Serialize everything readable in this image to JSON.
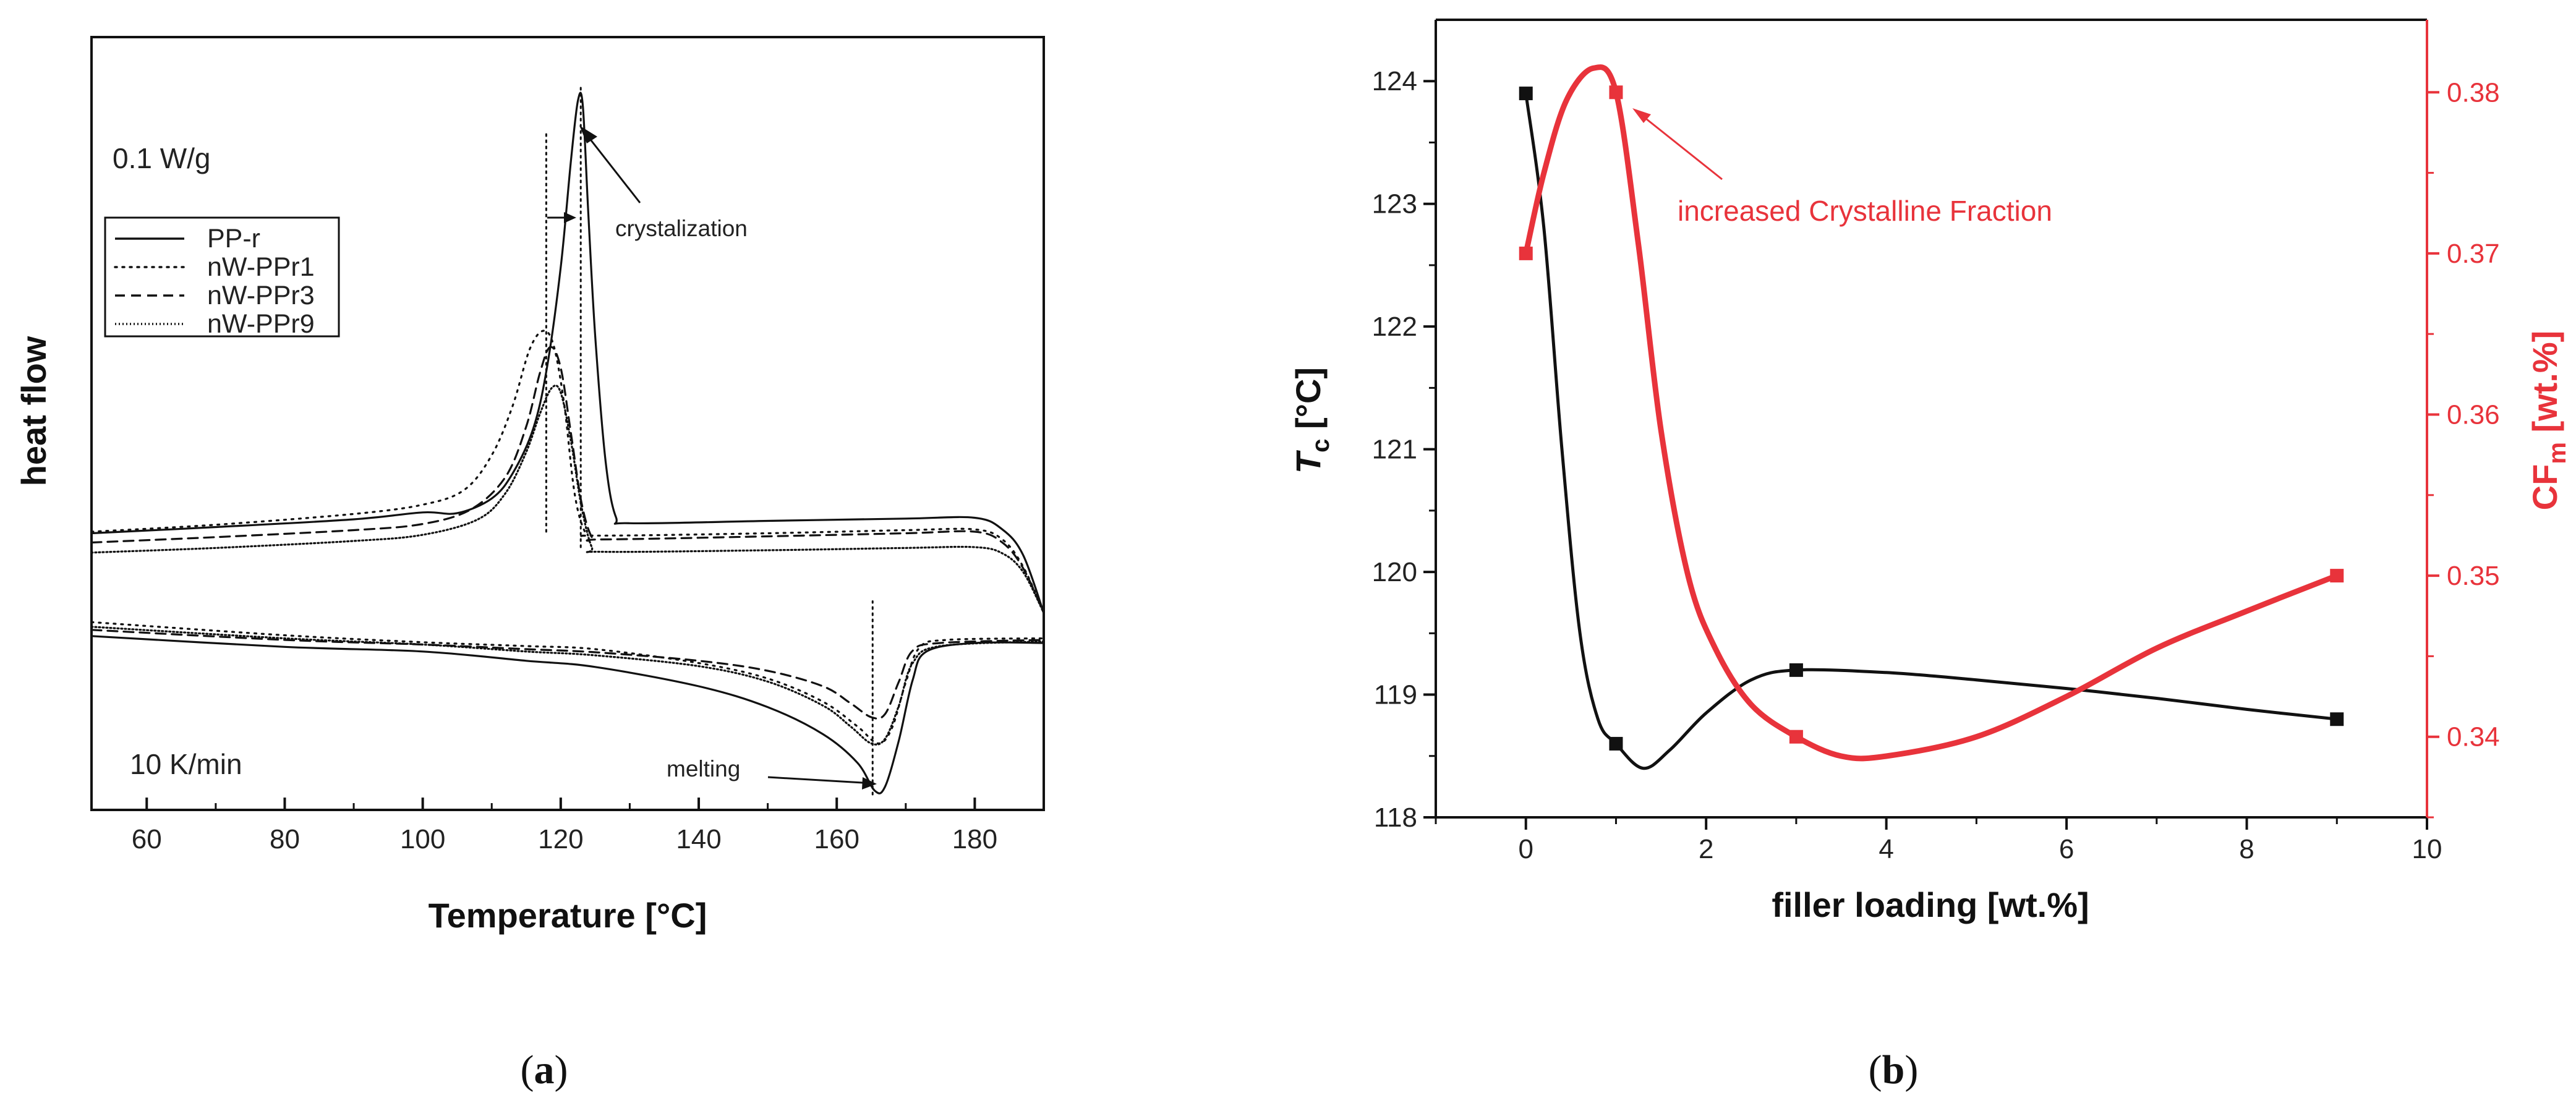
{
  "chart_data": [
    {
      "type": "line",
      "panel": "a",
      "caption": {
        "open": "(",
        "letter": "a",
        "close": ")"
      },
      "xlabel": "Temperature [°C]",
      "ylabel": "heat flow",
      "xlim": [
        52,
        190
      ],
      "xticks": [
        60,
        80,
        100,
        120,
        140,
        160,
        180
      ],
      "ylim": [
        0,
        100
      ],
      "annotations": {
        "scale": "0.1 W/g",
        "rate": "10 K/min",
        "crystallization": "crystalization",
        "melting": "melting"
      },
      "series": [
        {
          "name": "PP-r",
          "dash": "solid",
          "cooling": [
            [
              52,
              35.8
            ],
            [
              70,
              36.6
            ],
            [
              90,
              37.6
            ],
            [
              100,
              38.5
            ],
            [
              105,
              38.4
            ],
            [
              110,
              40.3
            ],
            [
              113,
              43.5
            ],
            [
              116,
              49.3
            ],
            [
              118,
              57.2
            ],
            [
              120,
              70.2
            ],
            [
              121.5,
              84.2
            ],
            [
              122.5,
              91.8
            ],
            [
              123.2,
              91.1
            ],
            [
              124,
              77.1
            ],
            [
              125,
              61.3
            ],
            [
              126.5,
              45.1
            ],
            [
              128,
              37.9
            ],
            [
              130,
              37.1
            ],
            [
              150,
              37.4
            ],
            [
              170,
              37.7
            ],
            [
              180,
              37.8
            ],
            [
              184,
              36.3
            ],
            [
              187,
              33.0
            ],
            [
              190,
              25.5
            ]
          ],
          "heating": [
            [
              52,
              22.5
            ],
            [
              80,
              21.1
            ],
            [
              100,
              20.5
            ],
            [
              115,
              19.3
            ],
            [
              125,
              18.5
            ],
            [
              140,
              16.0
            ],
            [
              150,
              13.3
            ],
            [
              158,
              9.8
            ],
            [
              163,
              6.1
            ],
            [
              165.5,
              2.5
            ],
            [
              167,
              3.0
            ],
            [
              169,
              9.0
            ],
            [
              171,
              16.8
            ],
            [
              173,
              20.5
            ],
            [
              180,
              21.6
            ],
            [
              190,
              21.6
            ]
          ]
        },
        {
          "name": "nW-PPr1",
          "dash": "dotted",
          "cooling": [
            [
              52,
              36.0
            ],
            [
              70,
              36.9
            ],
            [
              90,
              38.3
            ],
            [
              100,
              39.5
            ],
            [
              106,
              41.4
            ],
            [
              110,
              45.9
            ],
            [
              113,
              52.2
            ],
            [
              115.5,
              59.6
            ],
            [
              117.5,
              62.0
            ],
            [
              119,
              60.0
            ],
            [
              120.5,
              52.5
            ],
            [
              122,
              41.0
            ],
            [
              123.5,
              36.0
            ],
            [
              125,
              35.5
            ],
            [
              150,
              35.8
            ],
            [
              170,
              36.2
            ],
            [
              180,
              36.3
            ],
            [
              184,
              35.0
            ],
            [
              187,
              31.5
            ],
            [
              190,
              25.5
            ]
          ],
          "heating": [
            [
              52,
              24.3
            ],
            [
              80,
              22.6
            ],
            [
              100,
              21.7
            ],
            [
              115,
              21.2
            ],
            [
              125,
              20.8
            ],
            [
              140,
              19.0
            ],
            [
              150,
              17.0
            ],
            [
              158,
              14.0
            ],
            [
              163,
              10.8
            ],
            [
              166,
              8.6
            ],
            [
              168,
              10.6
            ],
            [
              170,
              16.5
            ],
            [
              172,
              21.0
            ],
            [
              176,
              22.0
            ],
            [
              190,
              22.2
            ]
          ]
        },
        {
          "name": "nW-PPr3",
          "dash": "dashed",
          "cooling": [
            [
              52,
              34.6
            ],
            [
              70,
              35.3
            ],
            [
              90,
              36.2
            ],
            [
              100,
              37.0
            ],
            [
              107,
              38.9
            ],
            [
              112,
              43.1
            ],
            [
              115,
              49.6
            ],
            [
              117,
              56.6
            ],
            [
              118.5,
              59.9
            ],
            [
              120,
              57.2
            ],
            [
              121.5,
              48.6
            ],
            [
              123,
              39.8
            ],
            [
              124.5,
              35.3
            ],
            [
              126,
              35.0
            ],
            [
              150,
              35.4
            ],
            [
              170,
              35.8
            ],
            [
              180,
              36.0
            ],
            [
              184,
              34.6
            ],
            [
              187,
              31.3
            ],
            [
              190,
              25.5
            ]
          ],
          "heating": [
            [
              52,
              23.3
            ],
            [
              80,
              22.0
            ],
            [
              100,
              21.4
            ],
            [
              115,
              20.8
            ],
            [
              125,
              20.4
            ],
            [
              140,
              19.3
            ],
            [
              150,
              18.0
            ],
            [
              158,
              16.0
            ],
            [
              162,
              13.8
            ],
            [
              165,
              12.0
            ],
            [
              167,
              12.4
            ],
            [
              169,
              16.6
            ],
            [
              171,
              20.6
            ],
            [
              175,
              21.6
            ],
            [
              190,
              22.0
            ]
          ]
        },
        {
          "name": "nW-PPr9",
          "dash": "fine-dotted",
          "cooling": [
            [
              52,
              33.3
            ],
            [
              70,
              33.9
            ],
            [
              90,
              34.8
            ],
            [
              100,
              35.6
            ],
            [
              108,
              37.6
            ],
            [
              112,
              41.0
            ],
            [
              115,
              46.3
            ],
            [
              117,
              51.3
            ],
            [
              118.7,
              54.6
            ],
            [
              120,
              54.0
            ],
            [
              121.5,
              47.6
            ],
            [
              123,
              39.3
            ],
            [
              124.5,
              34.0
            ],
            [
              126,
              33.4
            ],
            [
              150,
              33.6
            ],
            [
              170,
              33.9
            ],
            [
              180,
              34.0
            ],
            [
              184,
              33.2
            ],
            [
              187,
              30.8
            ],
            [
              190,
              25.5
            ]
          ],
          "heating": [
            [
              52,
              23.7
            ],
            [
              80,
              22.2
            ],
            [
              100,
              21.4
            ],
            [
              115,
              20.5
            ],
            [
              125,
              20.0
            ],
            [
              140,
              18.6
            ],
            [
              150,
              16.6
            ],
            [
              158,
              13.5
            ],
            [
              162,
              10.8
            ],
            [
              165,
              8.6
            ],
            [
              167,
              9.2
            ],
            [
              169,
              13.5
            ],
            [
              171,
              19.0
            ],
            [
              175,
              21.2
            ],
            [
              190,
              21.8
            ]
          ]
        }
      ]
    },
    {
      "type": "line",
      "panel": "b",
      "caption": {
        "open": "(",
        "letter": "b",
        "close": ")"
      },
      "xlabel": "filler loading [wt.%]",
      "ylabel": {
        "main": "T",
        "sub": "c",
        "unit": " [°C]"
      },
      "y2label": {
        "main": "CF",
        "sub": "m",
        "unit": " [wt.%]"
      },
      "xlim": [
        -1,
        10
      ],
      "xticks": [
        0,
        2,
        4,
        6,
        8,
        10
      ],
      "ylim": [
        118,
        124.5
      ],
      "yticks": [
        118,
        119,
        120,
        121,
        122,
        123,
        124
      ],
      "y2lim": [
        0.335,
        0.3845
      ],
      "y2ticks": [
        0.34,
        0.35,
        0.36,
        0.37,
        0.38
      ],
      "annotation": "increased Crystalline Fraction",
      "series": [
        {
          "name": "Tc",
          "axis": "left",
          "color": "#111111",
          "x": [
            0,
            1,
            3,
            9
          ],
          "y": [
            123.9,
            118.6,
            119.2,
            118.8
          ],
          "smooth": [
            [
              0,
              123.9
            ],
            [
              0.2,
              122.8
            ],
            [
              0.4,
              121.0
            ],
            [
              0.6,
              119.5
            ],
            [
              0.8,
              118.8
            ],
            [
              1,
              118.6
            ],
            [
              1.3,
              118.4
            ],
            [
              1.6,
              118.55
            ],
            [
              2,
              118.85
            ],
            [
              2.5,
              119.12
            ],
            [
              3,
              119.2
            ],
            [
              4,
              119.18
            ],
            [
              5,
              119.12
            ],
            [
              6,
              119.05
            ],
            [
              7,
              118.97
            ],
            [
              8,
              118.88
            ],
            [
              9,
              118.8
            ]
          ]
        },
        {
          "name": "CFm",
          "axis": "right",
          "color": "#e8333b",
          "x": [
            0,
            1,
            3,
            9
          ],
          "y": [
            0.37,
            0.38,
            0.34,
            0.35
          ],
          "smooth": [
            [
              0,
              0.37
            ],
            [
              0.2,
              0.375
            ],
            [
              0.45,
              0.3795
            ],
            [
              0.75,
              0.3815
            ],
            [
              1,
              0.38
            ],
            [
              1.25,
              0.3705
            ],
            [
              1.5,
              0.359
            ],
            [
              1.8,
              0.35
            ],
            [
              2.1,
              0.3455
            ],
            [
              2.5,
              0.342
            ],
            [
              3,
              0.34
            ],
            [
              3.5,
              0.3388
            ],
            [
              4,
              0.3388
            ],
            [
              5,
              0.34
            ],
            [
              6,
              0.3425
            ],
            [
              7,
              0.3455
            ],
            [
              8,
              0.3478
            ],
            [
              9,
              0.35
            ]
          ]
        }
      ]
    }
  ]
}
